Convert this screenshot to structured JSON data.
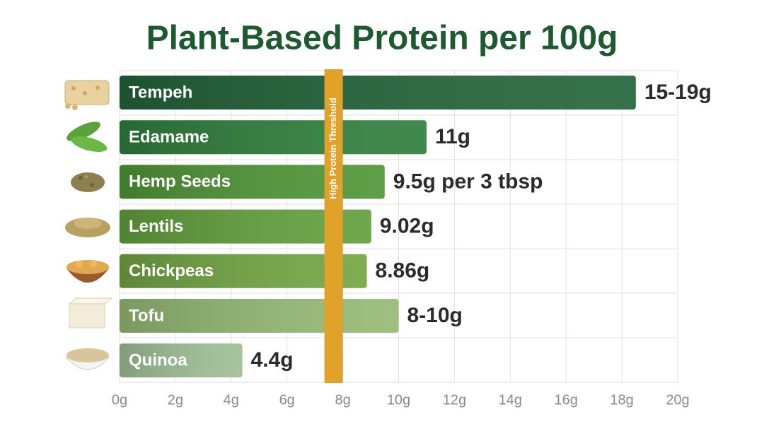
{
  "chart_data": {
    "type": "bar",
    "orientation": "horizontal",
    "title": "Plant-Based Protein per 100g",
    "categories": [
      "Tempeh",
      "Edamame",
      "Hemp Seeds",
      "Lentils",
      "Chickpeas",
      "Tofu",
      "Quinoa"
    ],
    "values": [
      18.5,
      11,
      9.5,
      9.02,
      8.86,
      10,
      4.4
    ],
    "value_labels": [
      "15-19g",
      "11g",
      "9.5g per 3 tbsp",
      "9.02g",
      "8.86g",
      "8-10g",
      "4.4g"
    ],
    "colors": [
      "#22643a",
      "#2f7f3c",
      "#4f9636",
      "#62a03c",
      "#72a542",
      "#95ba74",
      "#9dbf94"
    ],
    "xlim": [
      0,
      20
    ],
    "xticks": [
      {
        "value": 0,
        "label": "0g"
      },
      {
        "value": 2,
        "label": "2g"
      },
      {
        "value": 4,
        "label": "4g"
      },
      {
        "value": 6,
        "label": "6g"
      },
      {
        "value": 8,
        "label": "8g"
      },
      {
        "value": 10,
        "label": "10g"
      },
      {
        "value": 12,
        "label": "12g"
      },
      {
        "value": 14,
        "label": "14g"
      },
      {
        "value": 16,
        "label": "16g"
      },
      {
        "value": 18,
        "label": "18g"
      },
      {
        "value": 20,
        "label": "20g"
      }
    ],
    "grid": true,
    "threshold": {
      "value": 8,
      "label": "High Protein Threshold",
      "color": "#e0a22a"
    }
  }
}
